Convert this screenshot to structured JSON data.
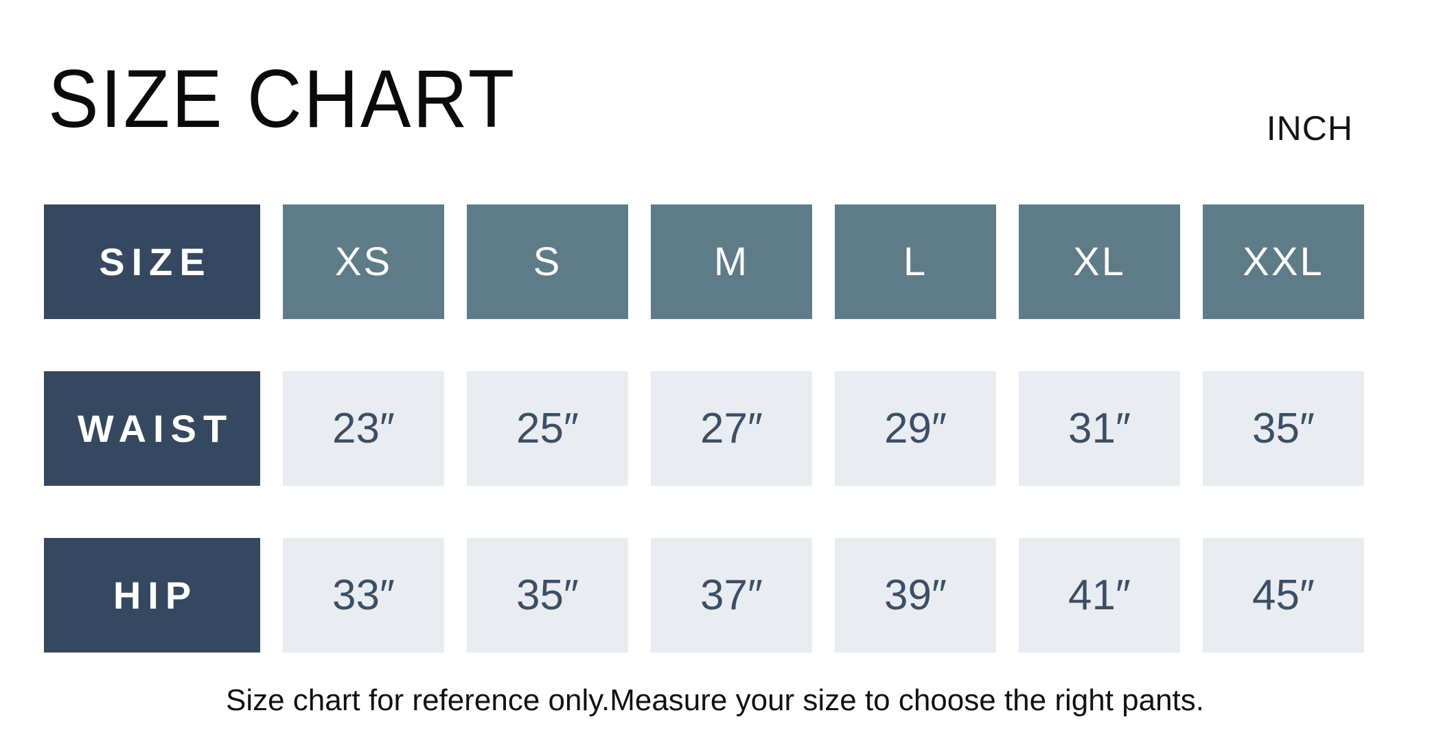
{
  "header": {
    "title": "SIZE CHART",
    "unit_label": "INCH"
  },
  "chart_data": {
    "type": "table",
    "title": "SIZE CHART",
    "unit": "INCH",
    "columns": [
      "SIZE",
      "XS",
      "S",
      "M",
      "L",
      "XL",
      "XXL"
    ],
    "rows": [
      {
        "label": "WAIST",
        "values": [
          "23″",
          "25″",
          "27″",
          "29″",
          "31″",
          "35″"
        ]
      },
      {
        "label": "HIP",
        "values": [
          "33″",
          "35″",
          "37″",
          "39″",
          "41″",
          "45″"
        ]
      }
    ]
  },
  "footer": {
    "note": "Size chart for reference only.Measure your size to choose the right pants."
  },
  "colors": {
    "row_header_bg": "#36485f",
    "column_header_bg": "#5e7b88",
    "value_cell_bg": "#e9edf2",
    "value_text": "#3d4f66",
    "header_text": "#ffffff",
    "title_text": "#0b0b0b",
    "page_bg": "#ffffff"
  }
}
